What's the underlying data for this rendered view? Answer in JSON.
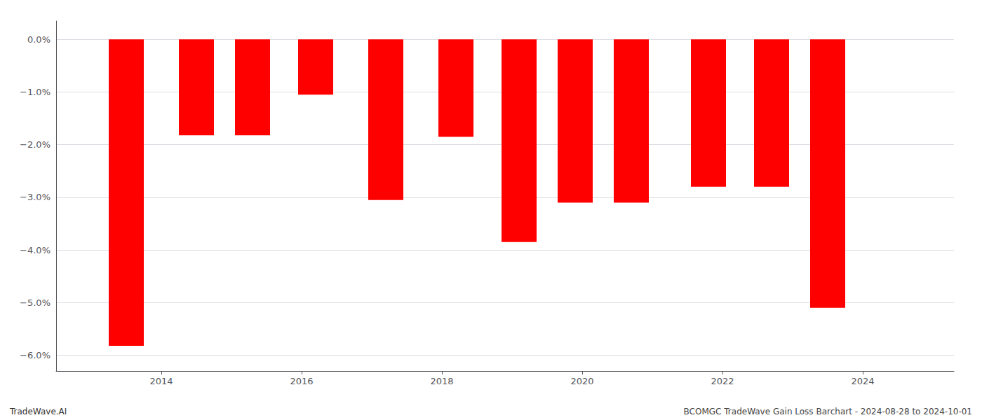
{
  "chart_data": {
    "type": "bar",
    "x": [
      2013.5,
      2014.5,
      2015.3,
      2016.2,
      2017.2,
      2018.2,
      2019.1,
      2019.9,
      2020.7,
      2021.8,
      2022.7,
      2023.5
    ],
    "values": [
      -5.82,
      -1.82,
      -1.82,
      -1.05,
      -3.05,
      -1.85,
      -3.85,
      -3.1,
      -3.1,
      -2.8,
      -2.8,
      -5.1
    ],
    "color": "#ff0000",
    "xlim": [
      2012.5,
      2025.3
    ],
    "xticks": [
      2014,
      2016,
      2018,
      2020,
      2022,
      2024
    ],
    "ylim": [
      -6.3,
      0.35
    ],
    "yticks": [
      {
        "value": 0.0,
        "label": "0.0%"
      },
      {
        "value": -1.0,
        "label": "−1.0%"
      },
      {
        "value": -2.0,
        "label": "−2.0%"
      },
      {
        "value": -3.0,
        "label": "−3.0%"
      },
      {
        "value": -4.0,
        "label": "−4.0%"
      },
      {
        "value": -5.0,
        "label": "−5.0%"
      },
      {
        "value": -6.0,
        "label": "−6.0%"
      }
    ],
    "grid": true,
    "annotations": [
      "TradeWave.AI",
      "BCOMGC TradeWave Gain Loss Barchart - 2024-08-28 to 2024-10-01"
    ]
  }
}
